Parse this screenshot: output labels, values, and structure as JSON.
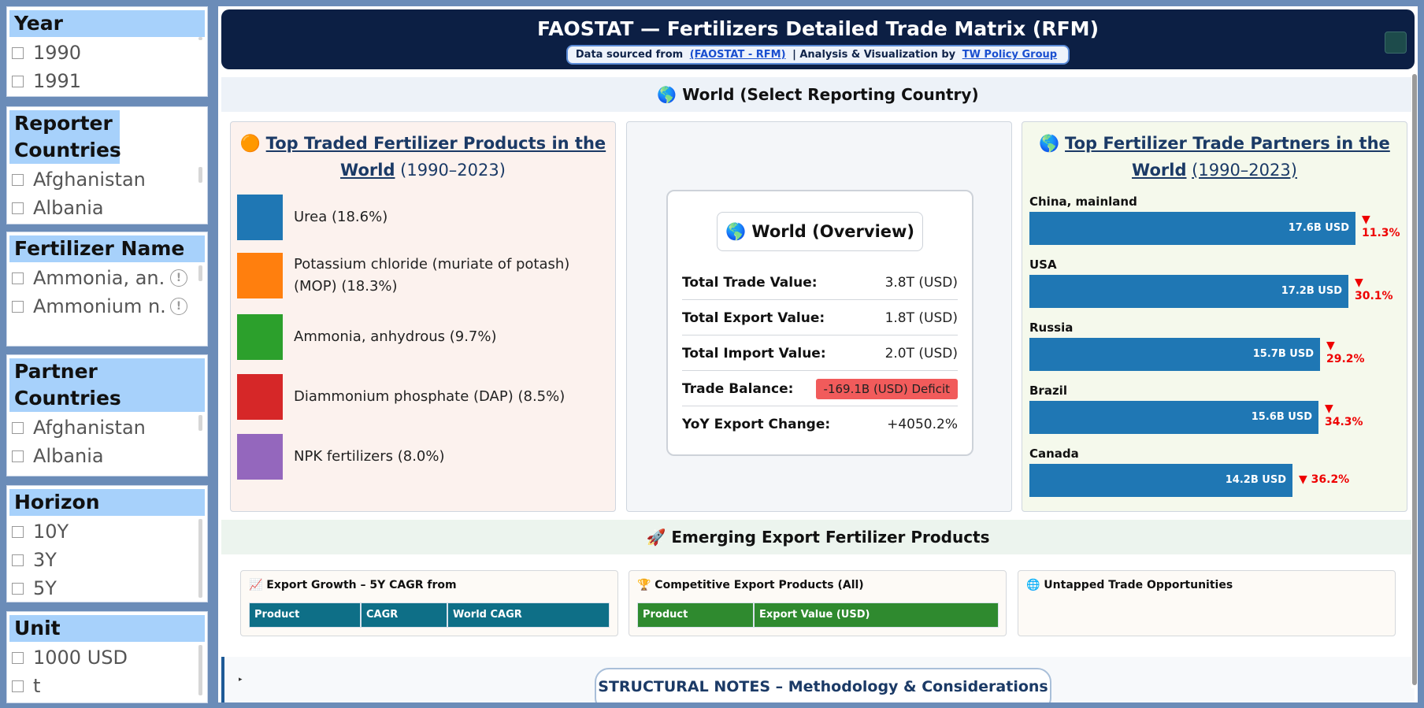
{
  "slicers": {
    "year": {
      "title": "Year",
      "items": [
        "1990",
        "1991"
      ]
    },
    "reporter": {
      "title": "Reporter Countries",
      "items": [
        "Afghanistan",
        "Albania"
      ]
    },
    "fertilizer": {
      "title": "Fertilizer Name",
      "items": [
        "Ammonia, an...",
        "Ammonium n..."
      ],
      "info_glyph": "!"
    },
    "partner": {
      "title": "Partner Countries",
      "items": [
        "Afghanistan",
        "Albania"
      ]
    },
    "horizon": {
      "title": "Horizon",
      "items": [
        "10Y",
        "3Y",
        "5Y"
      ]
    },
    "unit": {
      "title": "Unit",
      "items": [
        "1000 USD",
        "t"
      ]
    }
  },
  "header": {
    "title": "FAOSTAT — Fertilizers Detailed Trade Matrix (RFM)",
    "source_prefix": "Data sourced from",
    "source_link": "(FAOSTAT - RFM)",
    "analysis_prefix": "| Analysis & Visualization by",
    "analysis_link": "TW Policy Group"
  },
  "world_bar": {
    "icon": "globe-icon",
    "text": "🌎 World (Select Reporting Country)"
  },
  "top_products": {
    "icon": "ball-icon",
    "title_link": "Top Traded Fertilizer Products in the World",
    "years": "(1990–2023)",
    "items": [
      {
        "label": "Urea (18.6%)",
        "color": "#1f77b4"
      },
      {
        "label": "Potassium chloride (muriate of potash) (MOP) (18.3%)",
        "color": "#ff7f0e"
      },
      {
        "label": "Ammonia, anhydrous (9.7%)",
        "color": "#2ca02c"
      },
      {
        "label": "Diammonium phosphate (DAP) (8.5%)",
        "color": "#d62728"
      },
      {
        "label": "NPK fertilizers (8.0%)",
        "color": "#9467bd"
      }
    ]
  },
  "overview": {
    "title": "🌎 World (Overview)",
    "rows": [
      {
        "label": "Total Trade Value:",
        "value": "3.8T (USD)"
      },
      {
        "label": "Total Export Value:",
        "value": "1.8T (USD)"
      },
      {
        "label": "Total Import Value:",
        "value": "2.0T (USD)"
      },
      {
        "label": "Trade Balance:",
        "value": "-169.1B (USD) Deficit"
      },
      {
        "label": "YoY Export Change:",
        "value": "+4050.2%"
      }
    ]
  },
  "top_partners": {
    "title_link": "Top Fertilizer Trade Partners in the World",
    "years": "(1990–2023)",
    "items": [
      {
        "name": "China, mainland",
        "value_label": "17.6B USD",
        "value": 17.6,
        "change": "▼ 11.3%"
      },
      {
        "name": "USA",
        "value_label": "17.2B USD",
        "value": 17.2,
        "change": "▼ 30.1%"
      },
      {
        "name": "Russia",
        "value_label": "15.7B USD",
        "value": 15.7,
        "change": "▼ 29.2%"
      },
      {
        "name": "Brazil",
        "value_label": "15.6B USD",
        "value": 15.6,
        "change": "▼ 34.3%"
      },
      {
        "name": "Canada",
        "value_label": "14.2B USD",
        "value": 14.2,
        "change": "▼ 36.2%"
      }
    ]
  },
  "emerging_bar": {
    "text": "🚀 Emerging Export Fertilizer Products"
  },
  "cards": {
    "growth": {
      "title": "📈 Export Growth – 5Y CAGR from",
      "columns": [
        "Product",
        "CAGR",
        "World CAGR"
      ],
      "header_color": "#0e6f87"
    },
    "competitive": {
      "title": "🏆 Competitive Export Products (All)",
      "columns": [
        "Product",
        "Export Value (USD)"
      ],
      "header_color": "#2f8a2f"
    },
    "untapped": {
      "title": "🌐 Untapped Trade Opportunities"
    }
  },
  "notes": {
    "arrow": "▸",
    "title": "STRUCTURAL NOTES – Methodology & Considerations"
  }
}
